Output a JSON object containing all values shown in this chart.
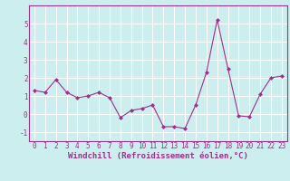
{
  "x": [
    0,
    1,
    2,
    3,
    4,
    5,
    6,
    7,
    8,
    9,
    10,
    11,
    12,
    13,
    14,
    15,
    16,
    17,
    18,
    19,
    20,
    21,
    22,
    23
  ],
  "y": [
    1.3,
    1.2,
    1.9,
    1.2,
    0.9,
    1.0,
    1.2,
    0.9,
    -0.2,
    0.2,
    0.3,
    0.5,
    -0.7,
    -0.7,
    -0.8,
    0.5,
    2.3,
    5.2,
    2.5,
    -0.1,
    -0.15,
    1.1,
    2.0,
    2.1
  ],
  "xlabel": "Windchill (Refroidissement éolien,°C)",
  "ylim": [
    -1.5,
    6.0
  ],
  "xlim": [
    -0.5,
    23.5
  ],
  "yticks": [
    -1,
    0,
    1,
    2,
    3,
    4,
    5
  ],
  "xticks": [
    0,
    1,
    2,
    3,
    4,
    5,
    6,
    7,
    8,
    9,
    10,
    11,
    12,
    13,
    14,
    15,
    16,
    17,
    18,
    19,
    20,
    21,
    22,
    23
  ],
  "line_color": "#993388",
  "marker": "D",
  "marker_size": 2.0,
  "bg_color": "#cceeee",
  "grid_color": "#ffffff",
  "xlabel_fontsize": 6.5,
  "tick_fontsize": 5.5
}
